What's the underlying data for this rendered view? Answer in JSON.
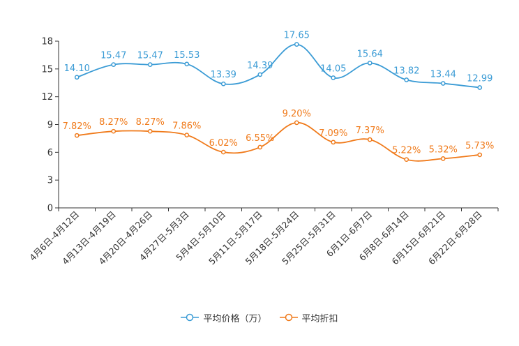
{
  "chart_data": {
    "type": "line",
    "categories": [
      "4月6日-4月12日",
      "4月13日-4月19日",
      "4月20日-4月26日",
      "4月27日-5月3日",
      "5月4日-5月10日",
      "5月11日-5月17日",
      "5月18日-5月24日",
      "5月25日-5月31日",
      "6月1日-6月7日",
      "6月8日-6月14日",
      "6月15日-6月21日",
      "6月22日-6月28日"
    ],
    "yticks": [
      "0",
      "3",
      "6",
      "9",
      "12",
      "15",
      "18"
    ],
    "ylim": [
      0,
      18
    ],
    "series": [
      {
        "name": "平均价格（万）",
        "color": "#3a9bd5",
        "values": [
          14.1,
          15.47,
          15.47,
          15.53,
          13.39,
          14.39,
          17.65,
          14.05,
          15.64,
          13.82,
          13.44,
          12.99
        ],
        "labels": [
          "14.10",
          "15.47",
          "15.47",
          "15.53",
          "13.39",
          "14.39",
          "17.65",
          "14.05",
          "15.64",
          "13.82",
          "13.44",
          "12.99"
        ]
      },
      {
        "name": "平均折扣",
        "color": "#f07a1a",
        "values": [
          7.82,
          8.27,
          8.27,
          7.86,
          6.02,
          6.55,
          9.2,
          7.09,
          7.37,
          5.22,
          5.32,
          5.73
        ],
        "labels": [
          "7.82%",
          "8.27%",
          "8.27%",
          "7.86%",
          "6.02%",
          "6.55%",
          "9.20%",
          "7.09%",
          "7.37%",
          "5.22%",
          "5.32%",
          "5.73%"
        ]
      }
    ],
    "legend_position": "bottom-center"
  }
}
